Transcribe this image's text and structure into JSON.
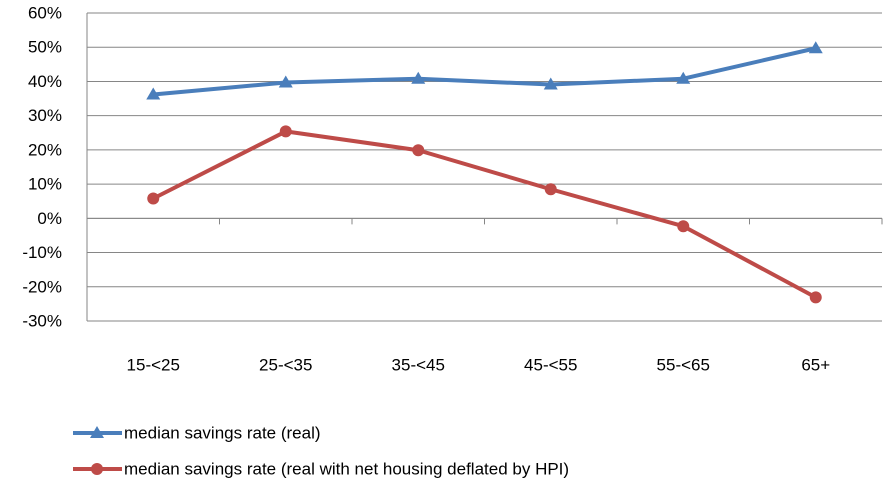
{
  "chart_data": {
    "type": "line",
    "categories": [
      "15-<25",
      "25-<35",
      "35-<45",
      "45-<55",
      "55-<65",
      "65+"
    ],
    "series": [
      {
        "name": "median savings rate (real)",
        "color": "#4a7ebb",
        "marker": "triangle",
        "values": [
          36.2,
          39.7,
          40.8,
          39.1,
          40.8,
          49.7
        ]
      },
      {
        "name": "median savings rate (real with net housing deflated by HPI)",
        "color": "#be4b48",
        "marker": "circle",
        "values": [
          5.8,
          25.4,
          19.9,
          8.5,
          -2.3,
          -23.1
        ]
      }
    ],
    "ylim": [
      -30,
      60
    ],
    "yticks": [
      {
        "value": -30,
        "label": "-30%"
      },
      {
        "value": -20,
        "label": "-20%"
      },
      {
        "value": -10,
        "label": "-10%"
      },
      {
        "value": 0,
        "label": "0%"
      },
      {
        "value": 10,
        "label": "10%"
      },
      {
        "value": 20,
        "label": "20%"
      },
      {
        "value": 30,
        "label": "30%"
      },
      {
        "value": 40,
        "label": "40%"
      },
      {
        "value": 50,
        "label": "50%"
      },
      {
        "value": 60,
        "label": "60%"
      }
    ],
    "grid": true
  }
}
